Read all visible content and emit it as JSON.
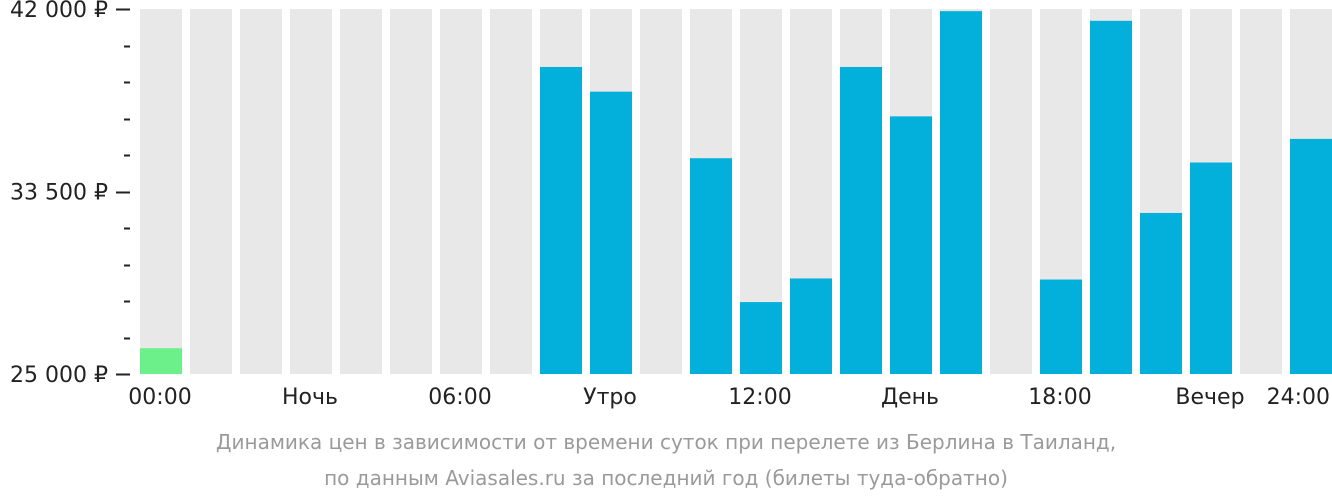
{
  "chart_data": {
    "type": "bar",
    "y_tick_labels": [
      "42 000 ₽",
      "33 500 ₽",
      "25 000 ₽"
    ],
    "y_tick_values": [
      42000,
      33500,
      25000
    ],
    "ylim": [
      25000,
      42000
    ],
    "x_labels": [
      "00:00",
      "Ночь",
      "06:00",
      "Утро",
      "12:00",
      "День",
      "18:00",
      "Вечер",
      "24:00"
    ],
    "categories": [
      "0",
      "1",
      "2",
      "3",
      "4",
      "5",
      "6",
      "7",
      "8",
      "9",
      "10",
      "11",
      "12",
      "13",
      "14",
      "15",
      "16",
      "17",
      "18",
      "19",
      "20",
      "21",
      "22",
      "23"
    ],
    "values": [
      26200,
      null,
      null,
      null,
      null,
      null,
      null,
      null,
      39300,
      38150,
      null,
      35050,
      28350,
      29450,
      39300,
      37000,
      41900,
      null,
      29400,
      41450,
      32500,
      34850,
      null,
      35950
    ],
    "highlight_index": 0,
    "grid": false,
    "legend": "none"
  },
  "colors": {
    "bar": "#03b0dc",
    "highlight": "#6cf08a",
    "background_column": "#e8e8e8",
    "axis": "#222222",
    "caption": "#9a9a9a"
  },
  "caption": {
    "line1": "Динамика цен в зависимости от времени суток при перелете из Берлина в Таиланд,",
    "line2": "по данным Aviasales.ru за последний год (билеты туда-обратно)"
  }
}
